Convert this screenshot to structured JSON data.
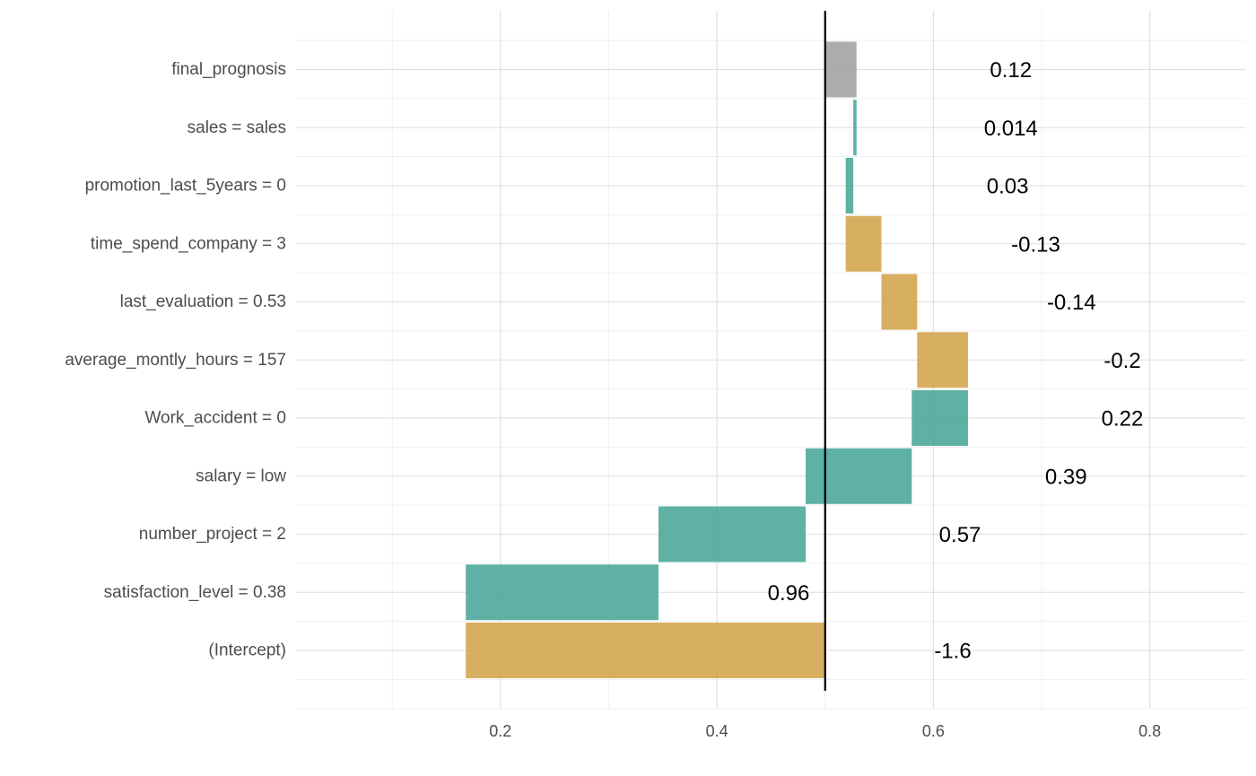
{
  "chart_data": {
    "type": "bar",
    "subtype": "waterfall-breakdown",
    "orientation": "horizontal",
    "title": "",
    "xlabel": "",
    "ylabel": "",
    "xlim": [
      0.0,
      0.875
    ],
    "x_ticks": [
      0.2,
      0.4,
      0.6,
      0.8
    ],
    "x_tick_labels": [
      "0.2",
      "0.4",
      "0.6",
      "0.8"
    ],
    "baseline": 0.5,
    "grid": true,
    "legend": "none",
    "colors": {
      "positive": "#4DA89A",
      "negative": "#D4A54F",
      "prediction": "#A3A3A3",
      "baseline_line": "#000000"
    },
    "bars": [
      {
        "label": "final_prognosis",
        "start": 0.5,
        "end": 0.529,
        "sign": "prediction",
        "value_label": "0.12"
      },
      {
        "label": "sales = sales",
        "start": 0.526,
        "end": 0.529,
        "sign": "positive",
        "value_label": "0.014"
      },
      {
        "label": "promotion_last_5years = 0",
        "start": 0.519,
        "end": 0.526,
        "sign": "positive",
        "value_label": "0.03"
      },
      {
        "label": "time_spend_company = 3",
        "start": 0.519,
        "end": 0.552,
        "sign": "negative",
        "value_label": "-0.13"
      },
      {
        "label": "last_evaluation = 0.53",
        "start": 0.552,
        "end": 0.585,
        "sign": "negative",
        "value_label": "-0.14"
      },
      {
        "label": "average_montly_hours = 157",
        "start": 0.585,
        "end": 0.632,
        "sign": "negative",
        "value_label": "-0.2"
      },
      {
        "label": "Work_accident = 0",
        "start": 0.58,
        "end": 0.632,
        "sign": "positive",
        "value_label": "0.22"
      },
      {
        "label": "salary = low",
        "start": 0.482,
        "end": 0.58,
        "sign": "positive",
        "value_label": "0.39"
      },
      {
        "label": "number_project = 2",
        "start": 0.346,
        "end": 0.482,
        "sign": "positive",
        "value_label": "0.57"
      },
      {
        "label": "satisfaction_level = 0.38",
        "start": 0.168,
        "end": 0.346,
        "sign": "positive",
        "value_label": "0.96"
      },
      {
        "label": "(Intercept)",
        "start": 0.168,
        "end": 0.5,
        "sign": "negative",
        "value_label": "-1.6"
      }
    ]
  }
}
